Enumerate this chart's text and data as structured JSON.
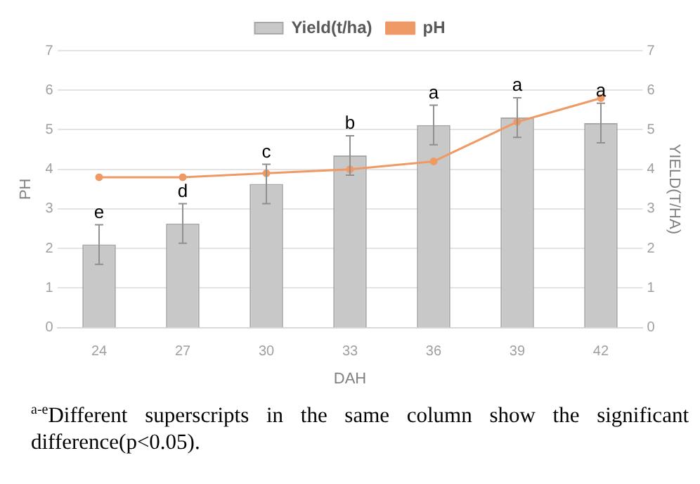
{
  "chart_data": {
    "type": "bar",
    "xlabel": "DAH",
    "ylabel": "PH",
    "y2label": "YIELD(T/HA)",
    "categories": [
      "24",
      "27",
      "30",
      "33",
      "36",
      "39",
      "42"
    ],
    "series": [
      {
        "name": "Yield(t/ha)",
        "axis": "y2",
        "color": "#c8c8c8",
        "values": [
          2.1,
          2.63,
          3.63,
          4.35,
          5.12,
          5.31,
          5.17
        ],
        "errors": [
          0.5,
          0.5,
          0.5,
          0.5,
          0.5,
          0.5,
          0.5
        ]
      },
      {
        "name": "pH",
        "type": "line",
        "axis": "y",
        "color": "#ef9a64",
        "values": [
          3.8,
          3.8,
          3.9,
          4.0,
          4.2,
          5.2,
          5.8
        ]
      }
    ],
    "ylim": [
      0,
      7
    ],
    "yticks": [
      0,
      1,
      2,
      3,
      4,
      5,
      6,
      7
    ],
    "y2lim": [
      0,
      7
    ],
    "y2ticks": [
      0,
      1,
      2,
      3,
      4,
      5,
      6,
      7
    ],
    "grid": "y",
    "legend": "top",
    "marker": "circle",
    "line_style": "solid",
    "annotations": [
      {
        "text": "e",
        "x": "24",
        "y": 2.6
      },
      {
        "text": "d",
        "x": "27",
        "y": 3.13
      },
      {
        "text": "c",
        "x": "30",
        "y": 4.13
      },
      {
        "text": "b",
        "x": "33",
        "y": 4.85
      },
      {
        "text": "a",
        "x": "36",
        "y": 5.62
      },
      {
        "text": "a",
        "x": "39",
        "y": 5.81
      },
      {
        "text": "a",
        "x": "42",
        "y": 5.67
      },
      "$^{a-e}$Different superscripts in the same column show the significant difference(p<0.05)."
    ]
  }
}
